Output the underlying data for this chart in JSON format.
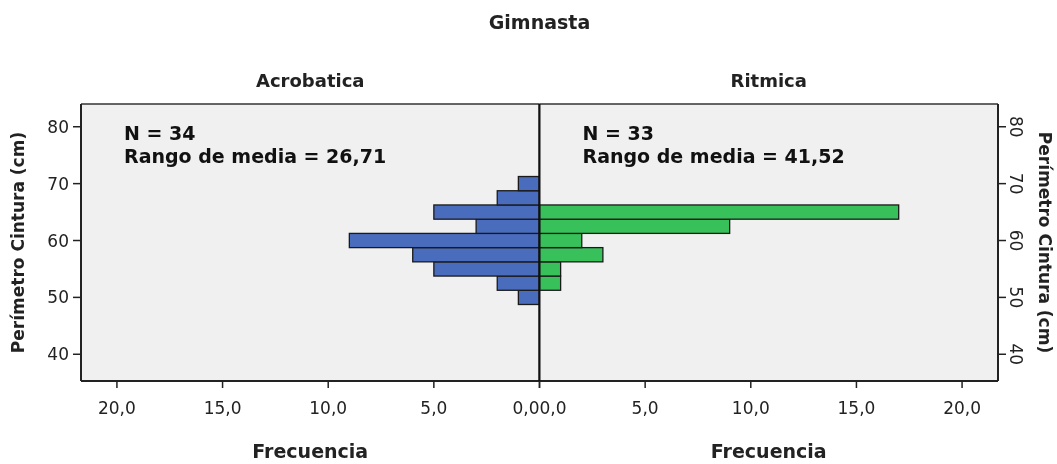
{
  "chart_data": [
    {
      "type": "histogram",
      "orientation": "horizontal",
      "title": "Gimnasta",
      "subtitle": "Acrobatica",
      "xlabel": "Frecuencia",
      "ylabel": "Perímetro Cintura (cm)",
      "annotations": [
        "N = 34",
        "Rango de media = 26,71"
      ],
      "color": "#4a6cbd",
      "bins": [
        48.75,
        51.25,
        53.75,
        56.25,
        58.75,
        61.25,
        63.75,
        66.25,
        68.75,
        71.25
      ],
      "values": [
        1,
        2,
        5,
        6,
        9,
        3,
        5,
        2,
        1
      ],
      "xlim": [
        21.7,
        0
      ],
      "xticks": [
        {
          "value": 20,
          "label": "20,0"
        },
        {
          "value": 15,
          "label": "15,0"
        },
        {
          "value": 10,
          "label": "10,0"
        },
        {
          "value": 5,
          "label": "5,0"
        },
        {
          "value": 0,
          "label": "0,0"
        }
      ],
      "ylim": [
        35.3,
        84
      ],
      "yticks": [
        40,
        50,
        60,
        70,
        80
      ],
      "grid": false
    },
    {
      "type": "histogram",
      "orientation": "horizontal",
      "subtitle": "Ritmica",
      "xlabel": "Frecuencia",
      "ylabel": "Perímetro Cintura (cm)",
      "annotations": [
        "N = 33",
        "Rango de media = 41,52"
      ],
      "color": "#38c05a",
      "bins": [
        51.25,
        53.75,
        56.25,
        58.75,
        61.25,
        63.75,
        66.25
      ],
      "values": [
        1,
        1,
        3,
        2,
        9,
        17
      ],
      "xlim": [
        0,
        21.7
      ],
      "xticks": [
        {
          "value": 0,
          "label": "0,0"
        },
        {
          "value": 5,
          "label": "5,0"
        },
        {
          "value": 10,
          "label": "10,0"
        },
        {
          "value": 15,
          "label": "15,0"
        },
        {
          "value": 20,
          "label": "20,0"
        }
      ],
      "ylim": [
        35.3,
        84
      ],
      "yticks": [
        40,
        50,
        60,
        70,
        80
      ],
      "grid": false
    }
  ]
}
